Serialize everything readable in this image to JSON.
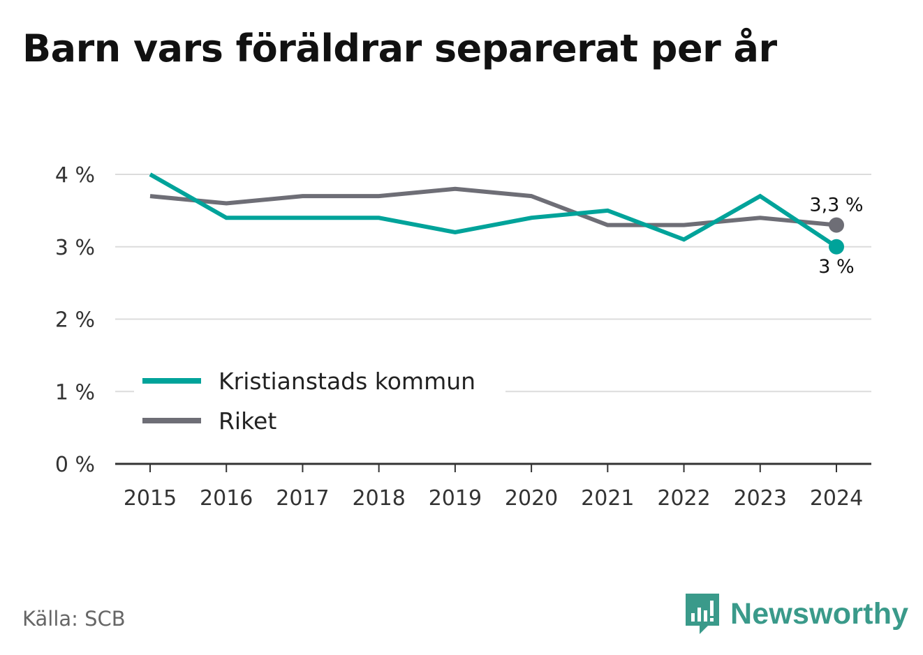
{
  "chart_data": {
    "type": "line",
    "title": "Barn vars föräldrar separerat per år",
    "categories": [
      "2015",
      "2016",
      "2017",
      "2018",
      "2019",
      "2020",
      "2021",
      "2022",
      "2023",
      "2024"
    ],
    "series": [
      {
        "name": "Kristianstads kommun",
        "color": "#00a39a",
        "values": [
          4.0,
          3.4,
          3.4,
          3.4,
          3.2,
          3.4,
          3.5,
          3.1,
          3.7,
          3.0
        ],
        "end_label": "3 %"
      },
      {
        "name": "Riket",
        "color": "#6e6e76",
        "values": [
          3.7,
          3.6,
          3.7,
          3.7,
          3.8,
          3.7,
          3.3,
          3.3,
          3.4,
          3.3
        ],
        "end_label": "3,3 %"
      }
    ],
    "yticks": [
      0,
      1,
      2,
      3,
      4
    ],
    "ytick_labels": [
      "0 %",
      "1 %",
      "2 %",
      "3 %",
      "4 %"
    ],
    "ylim": [
      0,
      4
    ],
    "grid": true,
    "legend_position": "bottom-left"
  },
  "source": "Källa: SCB",
  "brand": {
    "name": "Newsworthy",
    "color": "#3a9a8a"
  }
}
